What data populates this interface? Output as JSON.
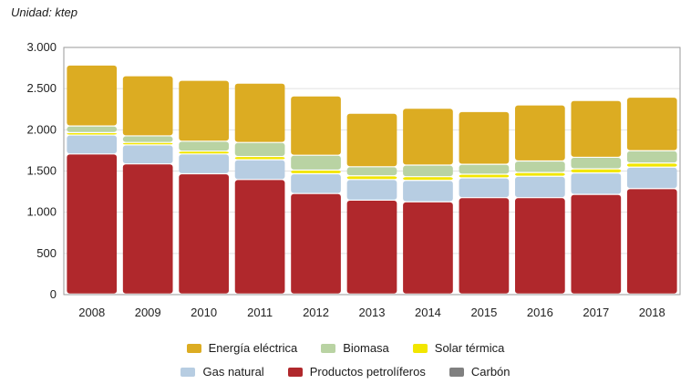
{
  "unit_label": "Unidad: ktep",
  "chart_data": {
    "type": "bar",
    "stacked": true,
    "categories": [
      "2008",
      "2009",
      "2010",
      "2011",
      "2012",
      "2013",
      "2014",
      "2015",
      "2016",
      "2017",
      "2018"
    ],
    "ylim": [
      0,
      3000
    ],
    "yticks": [
      0,
      500,
      1000,
      1500,
      2000,
      2500,
      3000
    ],
    "ytick_labels": [
      "0",
      "500",
      "1.000",
      "1.500",
      "2.000",
      "2.500",
      "3.000"
    ],
    "series": [
      {
        "name": "Productos petrolíferos",
        "color": "#b0282c",
        "values": [
          1700,
          1580,
          1460,
          1390,
          1220,
          1140,
          1120,
          1170,
          1170,
          1210,
          1280
        ]
      },
      {
        "name": "Gas natural",
        "color": "#b7cde2",
        "values": [
          230,
          230,
          240,
          240,
          240,
          250,
          260,
          240,
          260,
          260,
          260
        ]
      },
      {
        "name": "Carbón",
        "color": "#808080",
        "values": [
          0,
          0,
          0,
          0,
          0,
          0,
          0,
          0,
          0,
          0,
          0
        ]
      },
      {
        "name": "Solar térmica",
        "color": "#f2e600",
        "values": [
          30,
          30,
          35,
          40,
          45,
          45,
          45,
          45,
          45,
          50,
          50
        ]
      },
      {
        "name": "Biomasa",
        "color": "#b9d3a3",
        "values": [
          80,
          80,
          120,
          170,
          180,
          110,
          140,
          120,
          140,
          140,
          150
        ]
      },
      {
        "name": "Energía eléctrica",
        "color": "#dcac22",
        "values": [
          740,
          730,
          740,
          720,
          720,
          650,
          690,
          640,
          680,
          690,
          650
        ]
      }
    ]
  },
  "legend": {
    "row1": [
      {
        "label": "Energía eléctrica",
        "color": "#dcac22"
      },
      {
        "label": "Biomasa",
        "color": "#b9d3a3"
      },
      {
        "label": "Solar térmica",
        "color": "#f2e600"
      }
    ],
    "row2": [
      {
        "label": "Gas natural",
        "color": "#b7cde2"
      },
      {
        "label": "Productos petrolíferos",
        "color": "#b0282c"
      },
      {
        "label": "Carbón",
        "color": "#808080"
      }
    ]
  }
}
